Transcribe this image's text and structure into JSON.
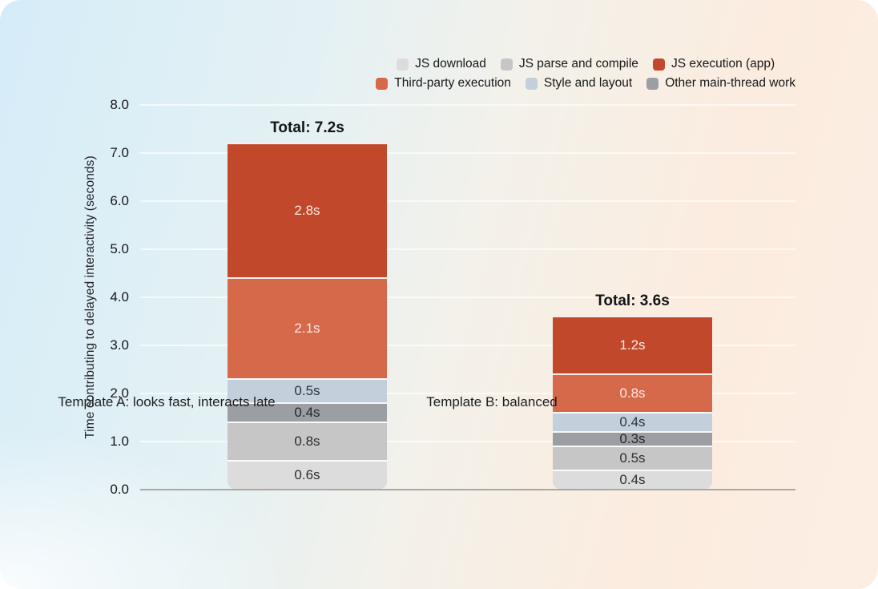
{
  "background": {
    "corner_color": "#ffffff",
    "gradient_top_left": "#d5ecf8",
    "gradient_bottom_right": "#fdeee4"
  },
  "legend_rows": [
    [
      "JS download",
      "JS parse and compile",
      "JS execution (app)"
    ],
    [
      "Third-party execution",
      "Style and layout",
      "Other main-thread work"
    ]
  ],
  "chart_data": {
    "type": "bar",
    "stacked": true,
    "title": "",
    "xlabel": "",
    "ylabel": "Time contributing to delayed interactivity (seconds)",
    "ylim": [
      0,
      8
    ],
    "ytick_labels": [
      "0.0",
      "1.0",
      "2.0",
      "3.0",
      "4.0",
      "5.0",
      "6.0",
      "7.0",
      "8.0"
    ],
    "grid": "horizontal",
    "legend_position": "top-right",
    "categories": [
      "Template A: looks fast, interacts late",
      "Template B: balanced"
    ],
    "totals": [
      "Total: 7.2s",
      "Total: 3.6s"
    ],
    "unit_suffix": "s",
    "series_bottom_to_top": [
      {
        "name": "JS download",
        "color": "#dcdcdc",
        "label_color": "#2e2e2e",
        "values": [
          0.6,
          0.4
        ]
      },
      {
        "name": "JS parse and compile",
        "color": "#c6c6c7",
        "label_color": "#2e2e2e",
        "values": [
          0.8,
          0.5
        ]
      },
      {
        "name": "Other main-thread work",
        "color": "#9b9ea2",
        "label_color": "#26282b",
        "values": [
          0.4,
          0.3
        ]
      },
      {
        "name": "Style and layout",
        "color": "#c4cfdc",
        "label_color": "#2e3440",
        "values": [
          0.5,
          0.4
        ]
      },
      {
        "name": "Third-party execution",
        "color": "#d5694a",
        "label_color": "#fbeae2",
        "values": [
          2.1,
          0.8
        ]
      },
      {
        "name": "JS execution (app)",
        "color": "#c1482a",
        "label_color": "#fbeae2",
        "values": [
          2.8,
          1.2
        ]
      }
    ]
  }
}
